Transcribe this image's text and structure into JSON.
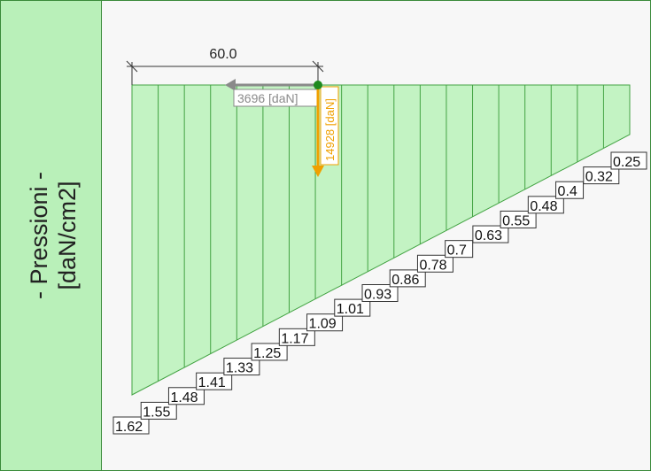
{
  "sidebar": {
    "title_line1": "- Pressioni -",
    "title_line2": "[daN/cm2]"
  },
  "dimension": {
    "label": "60.0"
  },
  "forces": {
    "horizontal_label": "3696 [daN]",
    "vertical_label": "14928 [daN]"
  },
  "pressure_labels": [
    "1.62",
    "1.55",
    "1.48",
    "1.41",
    "1.33",
    "1.25",
    "1.17",
    "1.09",
    "1.01",
    "0.93",
    "0.86",
    "0.78",
    "0.7",
    "0.63",
    "0.55",
    "0.48",
    "0.4",
    "0.32",
    "0.25"
  ],
  "colors": {
    "fill": "#c3f3c3",
    "stroke": "#43a343",
    "horizontal_force": "#8a8a8a",
    "vertical_force": "#f0a000",
    "point": "#1f8a1f"
  }
}
